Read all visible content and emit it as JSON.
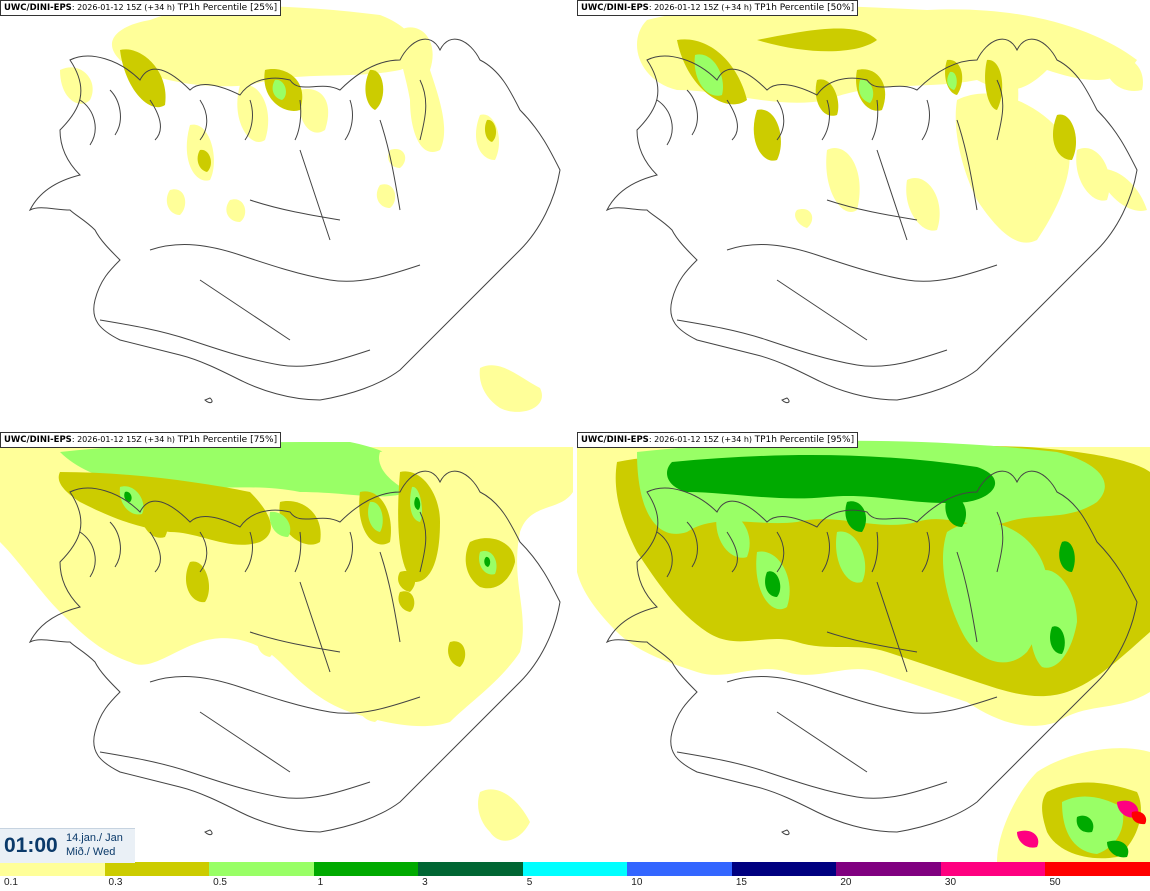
{
  "panels": [
    {
      "source": "UWC/DINI-EPS",
      "run": "2026-01-12 15Z (+34 h)",
      "field": "TP1h Percentile [25%]"
    },
    {
      "source": "UWC/DINI-EPS",
      "run": "2026-01-12 15Z (+34 h)",
      "field": "TP1h Percentile [50%]"
    },
    {
      "source": "UWC/DINI-EPS",
      "run": "2026-01-12 15Z (+34 h)",
      "field": "TP1h Percentile [75%]"
    },
    {
      "source": "UWC/DINI-EPS",
      "run": "2026-01-12 15Z (+34 h)",
      "field": "TP1h Percentile [95%]"
    }
  ],
  "valid_time": {
    "time": "01:00",
    "date_line1": "14.jan./ Jan",
    "date_line2": "Mið./ Wed"
  },
  "legend": {
    "ticks": [
      "0.1",
      "0.3",
      "0.5",
      "1",
      "3",
      "5",
      "10",
      "15",
      "20",
      "30",
      "50"
    ],
    "colors": [
      "#ffff99",
      "#cccc00",
      "#99ff66",
      "#00aa00",
      "#006633",
      "#00ffff",
      "#3366ff",
      "#000080",
      "#800080",
      "#ff0080",
      "#ff0000"
    ]
  }
}
